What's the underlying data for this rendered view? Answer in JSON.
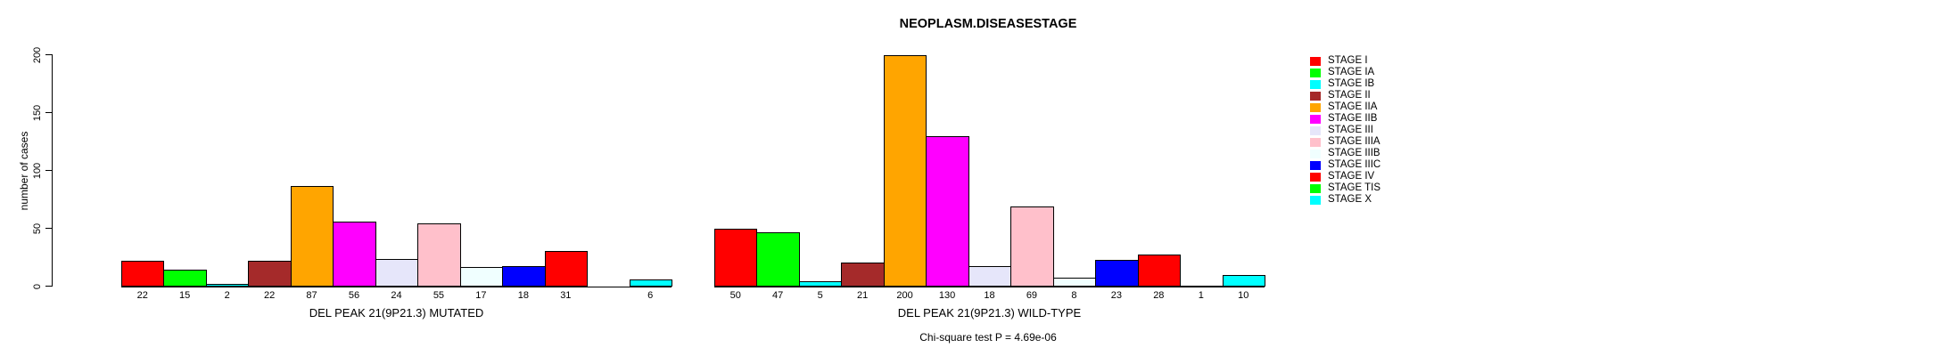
{
  "chart_data": {
    "type": "bar",
    "title": "NEOPLASM.DISEASESTAGE",
    "ylabel": "number of cases",
    "ylim": [
      0,
      200
    ],
    "yticks": [
      0,
      50,
      100,
      150,
      200
    ],
    "grid": false,
    "legend_position": "right",
    "categories": [
      "STAGE I",
      "STAGE IA",
      "STAGE IB",
      "STAGE II",
      "STAGE IIA",
      "STAGE IIB",
      "STAGE III",
      "STAGE IIIA",
      "STAGE IIIB",
      "STAGE IIIC",
      "STAGE IV",
      "STAGE TIS",
      "STAGE X"
    ],
    "colors": [
      "#FF0000",
      "#00FF00",
      "#00FFFF",
      "#A52A2A",
      "#FFA500",
      "#FF00FF",
      "#E6E6FA",
      "#FFC0CB",
      "#F0FFFF",
      "#0000FF",
      "#FF0000",
      "#00FF00",
      "#00FFFF"
    ],
    "series": [
      {
        "name": "DEL PEAK 21(9P21.3) MUTATED",
        "values": [
          22,
          15,
          2,
          22,
          87,
          56,
          24,
          55,
          17,
          18,
          31,
          0,
          6
        ],
        "bar_labels": [
          "22",
          "15",
          "2",
          "22",
          "87",
          "56",
          "24",
          "55",
          "17",
          "18",
          "31",
          "",
          "6"
        ]
      },
      {
        "name": "DEL PEAK 21(9P21.3) WILD-TYPE",
        "values": [
          50,
          47,
          5,
          21,
          200,
          130,
          18,
          69,
          8,
          23,
          28,
          1,
          10
        ],
        "bar_labels": [
          "50",
          "47",
          "5",
          "21",
          "200",
          "130",
          "18",
          "69",
          "8",
          "23",
          "28",
          "1",
          "10"
        ]
      }
    ],
    "footnote": "Chi-square test P = 4.69e-06"
  }
}
